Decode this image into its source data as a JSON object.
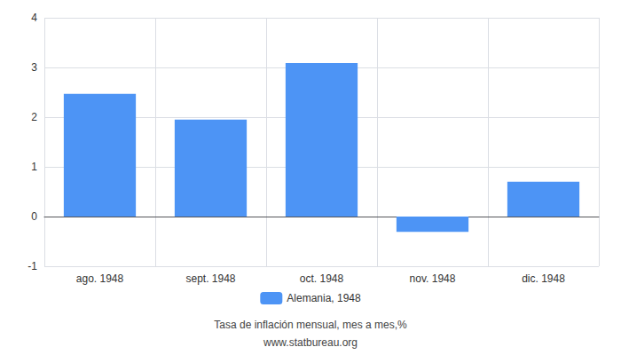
{
  "chart_data": {
    "type": "bar",
    "categories": [
      "ago. 1948",
      "sept. 1948",
      "oct. 1948",
      "nov. 1948",
      "dic. 1948"
    ],
    "series": [
      {
        "name": "Alemania, 1948",
        "color": "#4d94f5",
        "values": [
          2.47,
          1.95,
          3.09,
          -0.31,
          0.7
        ]
      }
    ],
    "ylim": [
      -1,
      4
    ],
    "yticks": [
      -1,
      0,
      1,
      2,
      3,
      4
    ],
    "grid": true,
    "legend": "bottom",
    "annotations": [
      "Tasa de inflación mensual, mes a mes,%",
      "www.statbureau.org"
    ]
  }
}
